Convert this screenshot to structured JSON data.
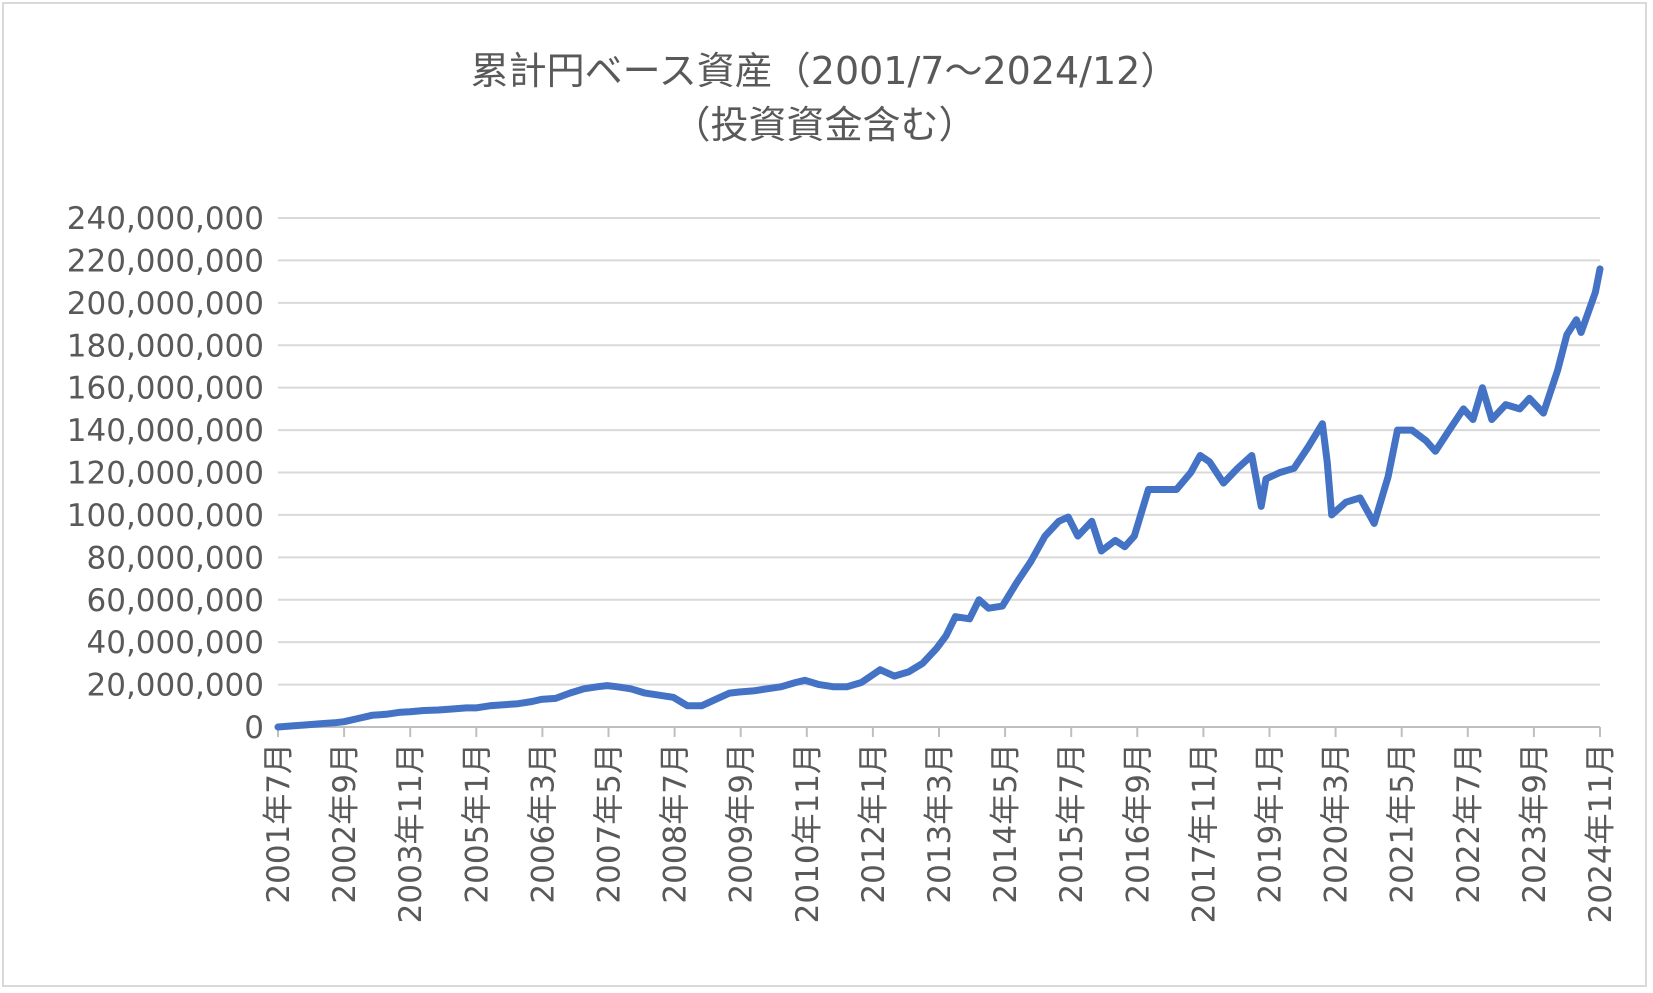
{
  "chart_data": {
    "type": "line",
    "title": "累計円ベース資産（2001/7～2024/12）",
    "subtitle": "（投資資金含む）",
    "xlabel": "",
    "ylabel": "",
    "ylim": [
      0,
      240000000
    ],
    "y_ticks": [
      0,
      20000000,
      40000000,
      60000000,
      80000000,
      100000000,
      120000000,
      140000000,
      160000000,
      180000000,
      200000000,
      220000000,
      240000000
    ],
    "y_tick_labels": [
      "0",
      "20,000,000",
      "40,000,000",
      "60,000,000",
      "80,000,000",
      "100,000,000",
      "120,000,000",
      "140,000,000",
      "160,000,000",
      "180,000,000",
      "200,000,000",
      "220,000,000",
      "240,000,000"
    ],
    "x_tick_labels": [
      "2001年7月",
      "2002年9月",
      "2003年11月",
      "2005年1月",
      "2006年3月",
      "2007年5月",
      "2008年7月",
      "2009年9月",
      "2010年11月",
      "2012年1月",
      "2013年3月",
      "2014年5月",
      "2015年7月",
      "2016年9月",
      "2017年11月",
      "2019年1月",
      "2020年3月",
      "2021年5月",
      "2022年7月",
      "2023年9月",
      "2024年11月"
    ],
    "grid": true,
    "legend": "none",
    "series_color": "#4472c4",
    "series": [
      {
        "x": [
          "2001-07",
          "2001-10",
          "2002-01",
          "2002-04",
          "2002-07",
          "2002-09",
          "2002-12",
          "2003-03",
          "2003-06",
          "2003-09",
          "2003-11",
          "2004-02",
          "2004-05",
          "2004-08",
          "2004-11",
          "2005-01",
          "2005-04",
          "2005-07",
          "2005-10",
          "2006-01",
          "2006-03",
          "2006-06",
          "2006-09",
          "2006-12",
          "2007-03",
          "2007-05",
          "2007-07",
          "2007-10",
          "2008-01",
          "2008-04",
          "2008-07",
          "2008-10",
          "2009-01",
          "2009-04",
          "2009-07",
          "2009-09",
          "2009-12",
          "2010-03",
          "2010-06",
          "2010-09",
          "2010-11",
          "2011-02",
          "2011-05",
          "2011-08",
          "2011-11",
          "2012-01",
          "2012-03",
          "2012-06",
          "2012-09",
          "2012-12",
          "2013-03",
          "2013-05",
          "2013-07",
          "2013-10",
          "2013-12",
          "2014-02",
          "2014-05",
          "2014-08",
          "2014-11",
          "2015-02",
          "2015-05",
          "2015-07",
          "2015-09",
          "2015-12",
          "2016-02",
          "2016-05",
          "2016-07",
          "2016-09",
          "2016-12",
          "2017-03",
          "2017-06",
          "2017-09",
          "2017-11",
          "2018-01",
          "2018-04",
          "2018-07",
          "2018-10",
          "2018-12",
          "2019-01",
          "2019-04",
          "2019-07",
          "2019-10",
          "2020-01",
          "2020-02",
          "2020-03",
          "2020-06",
          "2020-09",
          "2020-12",
          "2021-03",
          "2021-05",
          "2021-08",
          "2021-11",
          "2022-01",
          "2022-04",
          "2022-07",
          "2022-09",
          "2022-11",
          "2023-01",
          "2023-04",
          "2023-07",
          "2023-09",
          "2023-12",
          "2024-03",
          "2024-05",
          "2024-07",
          "2024-08",
          "2024-11",
          "2024-12"
        ],
        "y": [
          0,
          500000,
          1000000,
          1500000,
          2000000,
          2500000,
          4000000,
          5500000,
          6000000,
          7000000,
          7200000,
          7800000,
          8000000,
          8500000,
          9000000,
          9000000,
          10000000,
          10500000,
          11000000,
          12000000,
          13000000,
          13500000,
          16000000,
          18000000,
          19000000,
          19500000,
          19000000,
          18000000,
          16000000,
          15000000,
          14000000,
          10000000,
          10000000,
          13000000,
          16000000,
          16500000,
          17000000,
          18000000,
          19000000,
          21000000,
          22000000,
          20000000,
          19000000,
          19000000,
          21000000,
          24000000,
          27000000,
          24000000,
          26000000,
          30000000,
          37000000,
          43000000,
          52000000,
          51000000,
          60000000,
          56000000,
          57000000,
          68000000,
          78000000,
          90000000,
          97000000,
          99000000,
          90000000,
          97000000,
          83000000,
          88000000,
          85000000,
          90000000,
          112000000,
          112000000,
          112000000,
          120000000,
          128000000,
          125000000,
          115000000,
          122000000,
          128000000,
          104000000,
          117000000,
          120000000,
          122000000,
          132000000,
          143000000,
          125000000,
          100000000,
          106000000,
          108000000,
          96000000,
          118000000,
          140000000,
          140000000,
          135000000,
          130000000,
          140000000,
          150000000,
          145000000,
          160000000,
          145000000,
          152000000,
          150000000,
          155000000,
          148000000,
          168000000,
          185000000,
          192000000,
          186000000,
          205000000,
          216000000
        ]
      }
    ]
  }
}
